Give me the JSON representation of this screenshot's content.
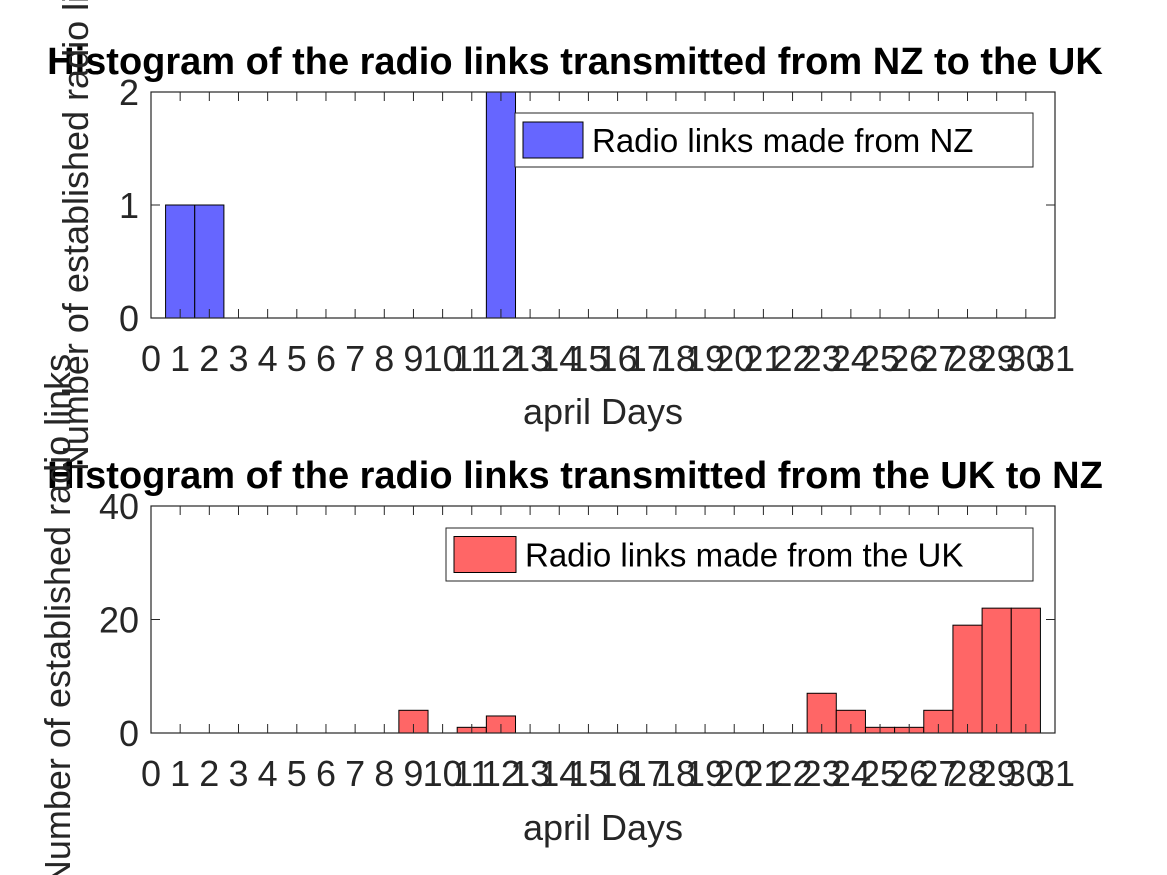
{
  "chart_data": [
    {
      "type": "bar",
      "title": "Histogram of the radio links transmitted from NZ to the UK",
      "xlabel": "april Days",
      "ylabel": "Number of established radio links",
      "xlim": [
        0,
        31
      ],
      "ylim": [
        0,
        2
      ],
      "xticks": [
        "0",
        "1",
        "2",
        "3",
        "4",
        "5",
        "6",
        "7",
        "8",
        "9",
        "10",
        "11",
        "12",
        "13",
        "14",
        "15",
        "16",
        "17",
        "18",
        "19",
        "20",
        "21",
        "22",
        "23",
        "24",
        "25",
        "26",
        "27",
        "28",
        "29",
        "30",
        "31"
      ],
      "yticks": [
        "0",
        "1",
        "2"
      ],
      "grid": false,
      "legend_position": "top-right",
      "series": [
        {
          "name": "Radio links made from NZ",
          "color": "#6666ff",
          "categories": [
            1,
            2,
            12
          ],
          "values": [
            1,
            1,
            2
          ]
        }
      ]
    },
    {
      "type": "bar",
      "title": "Histogram of the radio links transmitted from the UK to NZ",
      "xlabel": "april Days",
      "ylabel": "Number of established radio links",
      "xlim": [
        0,
        31
      ],
      "ylim": [
        0,
        40
      ],
      "xticks": [
        "0",
        "1",
        "2",
        "3",
        "4",
        "5",
        "6",
        "7",
        "8",
        "9",
        "10",
        "11",
        "12",
        "13",
        "14",
        "15",
        "16",
        "17",
        "18",
        "19",
        "20",
        "21",
        "22",
        "23",
        "24",
        "25",
        "26",
        "27",
        "28",
        "29",
        "30",
        "31"
      ],
      "yticks": [
        "0",
        "20",
        "40"
      ],
      "grid": false,
      "legend_position": "top-right",
      "series": [
        {
          "name": "Radio links made from the UK",
          "color": "#ff6666",
          "categories": [
            9,
            11,
            12,
            23,
            24,
            25,
            26,
            27,
            28,
            29,
            30
          ],
          "values": [
            4,
            1,
            3,
            7,
            4,
            1,
            1,
            4,
            19,
            22,
            22
          ]
        }
      ]
    }
  ]
}
